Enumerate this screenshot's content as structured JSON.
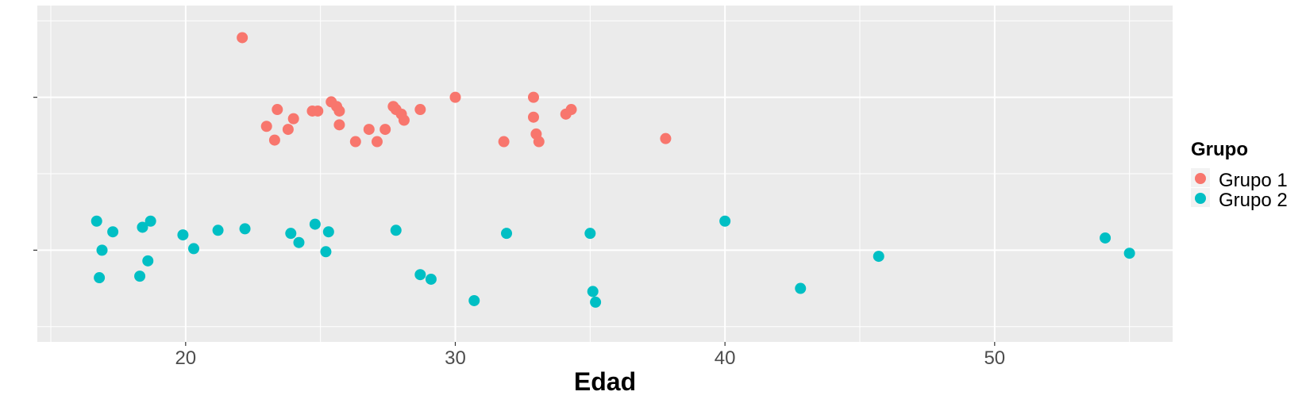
{
  "chart_data": {
    "type": "scatter",
    "title": "",
    "xlabel": "Edad",
    "ylabel": "",
    "xlim": [
      14.5,
      56.6
    ],
    "ylim": [
      0,
      22
    ],
    "xticks": [
      20,
      30,
      40,
      50
    ],
    "yticks": [
      6,
      16
    ],
    "grid": true,
    "legend": {
      "title": "Grupo",
      "position": "right"
    },
    "series": [
      {
        "name": "Grupo 1",
        "color": "#F8766D",
        "points": [
          [
            22.1,
            2.1
          ],
          [
            23.0,
            7.9
          ],
          [
            23.3,
            8.8
          ],
          [
            23.4,
            6.8
          ],
          [
            23.8,
            8.1
          ],
          [
            24.0,
            7.4
          ],
          [
            24.7,
            6.9
          ],
          [
            24.9,
            6.9
          ],
          [
            25.4,
            6.3
          ],
          [
            25.6,
            6.6
          ],
          [
            25.7,
            7.8
          ],
          [
            25.7,
            6.9
          ],
          [
            26.3,
            8.9
          ],
          [
            26.8,
            8.1
          ],
          [
            27.1,
            8.9
          ],
          [
            27.4,
            8.1
          ],
          [
            27.7,
            6.6
          ],
          [
            27.8,
            6.8
          ],
          [
            28.0,
            7.1
          ],
          [
            28.1,
            7.5
          ],
          [
            28.7,
            6.8
          ],
          [
            30.0,
            6.0
          ],
          [
            31.8,
            8.9
          ],
          [
            32.9,
            7.3
          ],
          [
            32.9,
            6.0
          ],
          [
            33.0,
            8.4
          ],
          [
            33.1,
            8.9
          ],
          [
            34.1,
            7.1
          ],
          [
            34.3,
            6.8
          ],
          [
            37.8,
            8.7
          ]
        ]
      },
      {
        "name": "Grupo 2",
        "color": "#00BFC4",
        "points": [
          [
            16.7,
            14.1
          ],
          [
            16.8,
            17.8
          ],
          [
            16.9,
            16.0
          ],
          [
            17.3,
            14.8
          ],
          [
            18.3,
            17.7
          ],
          [
            18.4,
            14.5
          ],
          [
            18.6,
            16.7
          ],
          [
            18.7,
            14.1
          ],
          [
            19.9,
            15.0
          ],
          [
            20.3,
            15.9
          ],
          [
            21.2,
            14.7
          ],
          [
            22.2,
            14.6
          ],
          [
            23.9,
            14.9
          ],
          [
            24.2,
            15.5
          ],
          [
            24.8,
            14.3
          ],
          [
            25.2,
            16.1
          ],
          [
            25.3,
            14.8
          ],
          [
            27.8,
            14.7
          ],
          [
            28.7,
            17.6
          ],
          [
            29.1,
            17.9
          ],
          [
            30.7,
            19.3
          ],
          [
            31.9,
            14.9
          ],
          [
            35.0,
            14.9
          ],
          [
            35.1,
            18.7
          ],
          [
            35.2,
            19.4
          ],
          [
            40.0,
            14.1
          ],
          [
            42.8,
            18.5
          ],
          [
            45.7,
            16.4
          ],
          [
            54.1,
            15.2
          ],
          [
            55.0,
            16.2
          ]
        ]
      }
    ]
  }
}
